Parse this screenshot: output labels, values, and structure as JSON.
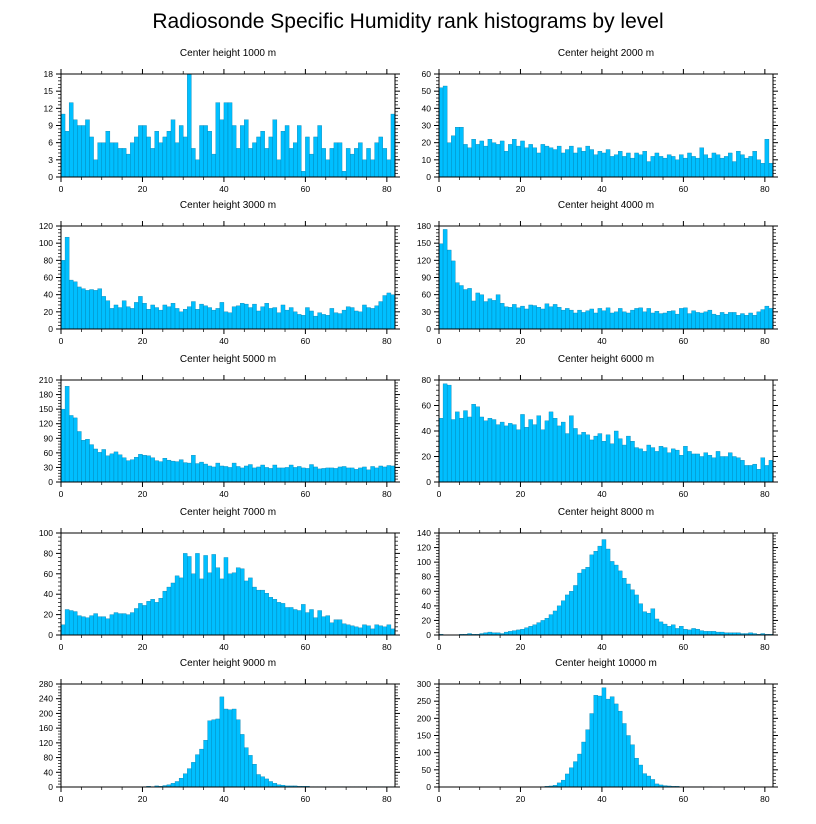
{
  "figure_title": "Radiosonde Specific Humidity rank histograms by level",
  "chart_data": [
    {
      "type": "bar",
      "title": "Center height 1000 m",
      "xlim": [
        0,
        82
      ],
      "ylim": [
        0,
        18
      ],
      "yticks": [
        0,
        3,
        6,
        9,
        12,
        15,
        18
      ],
      "xticks": [
        0,
        20,
        40,
        60,
        80
      ],
      "bar_color": "#00bfff",
      "values": [
        11,
        8,
        13,
        10,
        9,
        9,
        10,
        7,
        3,
        6,
        6,
        8,
        6,
        6,
        5,
        5,
        4,
        6,
        7,
        9,
        9,
        7,
        5,
        8,
        6,
        7,
        8,
        10,
        6,
        9,
        7,
        18,
        5,
        3,
        9,
        9,
        8,
        4,
        13,
        10,
        13,
        13,
        9,
        5,
        9,
        10,
        5,
        6,
        7,
        8,
        5,
        7,
        10,
        3,
        8,
        9,
        5,
        6,
        9,
        1,
        7,
        4,
        7,
        9,
        5,
        3,
        5,
        6,
        6,
        1,
        5,
        4,
        5,
        6,
        3,
        5,
        3,
        6,
        7,
        5,
        3,
        11
      ]
    },
    {
      "type": "bar",
      "title": "Center height 2000 m",
      "xlim": [
        0,
        82
      ],
      "ylim": [
        0,
        60
      ],
      "yticks": [
        0,
        10,
        20,
        30,
        40,
        50,
        60
      ],
      "xticks": [
        0,
        20,
        40,
        60,
        80
      ],
      "bar_color": "#00bfff",
      "values": [
        52,
        53,
        20,
        24,
        29,
        29,
        19,
        17,
        22,
        19,
        21,
        18,
        22,
        20,
        19,
        21,
        15,
        19,
        22,
        18,
        21,
        17,
        19,
        17,
        14,
        19,
        18,
        17,
        16,
        18,
        14,
        16,
        18,
        14,
        17,
        15,
        18,
        16,
        13,
        15,
        14,
        16,
        12,
        13,
        15,
        12,
        14,
        11,
        14,
        13,
        15,
        9,
        12,
        14,
        12,
        11,
        13,
        12,
        10,
        13,
        11,
        14,
        12,
        11,
        17,
        13,
        11,
        14,
        13,
        11,
        12,
        14,
        9,
        15,
        13,
        11,
        12,
        15,
        10,
        8,
        22,
        8
      ]
    },
    {
      "type": "bar",
      "title": "Center height 3000 m",
      "xlim": [
        0,
        82
      ],
      "ylim": [
        0,
        120
      ],
      "yticks": [
        0,
        20,
        40,
        60,
        80,
        100,
        120
      ],
      "xticks": [
        0,
        20,
        40,
        60,
        80
      ],
      "bar_color": "#00bfff",
      "values": [
        80,
        107,
        57,
        55,
        49,
        47,
        45,
        46,
        45,
        47,
        38,
        33,
        24,
        28,
        25,
        33,
        26,
        24,
        31,
        38,
        30,
        23,
        28,
        25,
        22,
        28,
        26,
        30,
        24,
        20,
        23,
        26,
        32,
        23,
        29,
        27,
        25,
        22,
        24,
        31,
        20,
        19,
        26,
        27,
        30,
        29,
        25,
        29,
        21,
        26,
        30,
        24,
        25,
        19,
        28,
        22,
        25,
        20,
        17,
        16,
        25,
        21,
        15,
        19,
        17,
        16,
        24,
        19,
        18,
        22,
        26,
        25,
        21,
        20,
        28,
        25,
        24,
        27,
        32,
        39,
        42,
        40
      ]
    },
    {
      "type": "bar",
      "title": "Center height 4000 m",
      "xlim": [
        0,
        82
      ],
      "ylim": [
        0,
        180
      ],
      "yticks": [
        0,
        30,
        60,
        90,
        120,
        150,
        180
      ],
      "xticks": [
        0,
        20,
        40,
        60,
        80
      ],
      "bar_color": "#00bfff",
      "values": [
        149,
        174,
        138,
        119,
        81,
        76,
        69,
        71,
        49,
        63,
        60,
        48,
        53,
        50,
        60,
        45,
        39,
        38,
        43,
        37,
        40,
        35,
        42,
        41,
        38,
        35,
        44,
        39,
        43,
        38,
        33,
        36,
        33,
        28,
        33,
        29,
        32,
        35,
        28,
        36,
        32,
        37,
        28,
        30,
        36,
        30,
        28,
        33,
        36,
        37,
        30,
        36,
        28,
        31,
        27,
        28,
        31,
        32,
        26,
        36,
        37,
        27,
        32,
        29,
        28,
        30,
        33,
        26,
        24,
        29,
        26,
        29,
        29,
        24,
        27,
        24,
        28,
        24,
        30,
        34,
        40,
        36
      ]
    },
    {
      "type": "bar",
      "title": "Center height 5000 m",
      "xlim": [
        0,
        82
      ],
      "ylim": [
        0,
        210
      ],
      "yticks": [
        0,
        30,
        60,
        90,
        120,
        150,
        180,
        210
      ],
      "xticks": [
        0,
        20,
        40,
        60,
        80
      ],
      "bar_color": "#00bfff",
      "values": [
        150,
        197,
        137,
        132,
        104,
        86,
        88,
        77,
        68,
        61,
        67,
        54,
        58,
        62,
        56,
        50,
        44,
        46,
        51,
        57,
        55,
        54,
        50,
        44,
        42,
        49,
        45,
        43,
        42,
        46,
        40,
        39,
        55,
        38,
        41,
        37,
        33,
        31,
        39,
        33,
        32,
        30,
        39,
        32,
        29,
        33,
        36,
        29,
        31,
        35,
        30,
        28,
        35,
        29,
        29,
        30,
        35,
        30,
        32,
        29,
        28,
        36,
        31,
        27,
        28,
        29,
        29,
        28,
        31,
        32,
        29,
        29,
        26,
        29,
        31,
        25,
        32,
        29,
        33,
        31,
        34,
        33
      ]
    },
    {
      "type": "bar",
      "title": "Center height 6000 m",
      "xlim": [
        0,
        82
      ],
      "ylim": [
        0,
        80
      ],
      "yticks": [
        0,
        20,
        40,
        60,
        80
      ],
      "xticks": [
        0,
        20,
        40,
        60,
        80
      ],
      "bar_color": "#00bfff",
      "values": [
        50,
        77,
        76,
        49,
        55,
        50,
        56,
        51,
        61,
        59,
        51,
        48,
        50,
        49,
        45,
        47,
        44,
        46,
        45,
        41,
        53,
        43,
        49,
        45,
        52,
        41,
        48,
        55,
        50,
        44,
        47,
        38,
        52,
        42,
        37,
        39,
        37,
        33,
        36,
        38,
        32,
        37,
        30,
        40,
        34,
        29,
        36,
        32,
        27,
        26,
        24,
        29,
        27,
        24,
        28,
        27,
        23,
        26,
        25,
        21,
        28,
        24,
        22,
        22,
        20,
        23,
        21,
        19,
        24,
        20,
        20,
        23,
        20,
        19,
        17,
        13,
        13,
        14,
        10,
        19,
        13,
        17
      ]
    },
    {
      "type": "bar",
      "title": "Center height 7000 m",
      "xlim": [
        0,
        82
      ],
      "ylim": [
        0,
        100
      ],
      "yticks": [
        0,
        20,
        40,
        60,
        80,
        100
      ],
      "xticks": [
        0,
        20,
        40,
        60,
        80
      ],
      "bar_color": "#00bfff",
      "values": [
        10,
        25,
        24,
        23,
        19,
        18,
        17,
        19,
        21,
        18,
        18,
        16,
        20,
        22,
        21,
        21,
        20,
        22,
        26,
        31,
        29,
        33,
        35,
        32,
        36,
        43,
        47,
        51,
        58,
        56,
        80,
        77,
        60,
        80,
        55,
        78,
        61,
        79,
        66,
        55,
        76,
        60,
        61,
        66,
        65,
        53,
        56,
        47,
        44,
        44,
        41,
        37,
        35,
        32,
        31,
        27,
        27,
        25,
        24,
        30,
        22,
        25,
        17,
        24,
        18,
        19,
        12,
        15,
        15,
        11,
        10,
        9,
        8,
        7,
        10,
        9,
        6,
        10,
        9,
        8,
        10,
        6
      ]
    },
    {
      "type": "bar",
      "title": "Center height 8000 m",
      "xlim": [
        0,
        82
      ],
      "ylim": [
        0,
        140
      ],
      "yticks": [
        0,
        20,
        40,
        60,
        80,
        100,
        120,
        140
      ],
      "xticks": [
        0,
        20,
        40,
        60,
        80
      ],
      "bar_color": "#00bfff",
      "values": [
        1,
        0,
        0,
        0,
        0,
        1,
        1,
        2,
        1,
        1,
        2,
        3,
        4,
        3,
        3,
        2,
        4,
        5,
        6,
        7,
        8,
        10,
        12,
        14,
        17,
        20,
        23,
        28,
        33,
        40,
        47,
        55,
        60,
        68,
        85,
        90,
        93,
        110,
        115,
        122,
        131,
        118,
        101,
        96,
        88,
        78,
        70,
        62,
        55,
        43,
        32,
        30,
        36,
        22,
        18,
        15,
        12,
        14,
        9,
        12,
        8,
        7,
        9,
        8,
        6,
        5,
        5,
        5,
        4,
        4,
        3,
        3,
        3,
        3,
        2,
        2,
        3,
        2,
        1,
        2,
        1,
        1
      ]
    },
    {
      "type": "bar",
      "title": "Center height 9000 m",
      "xlim": [
        0,
        82
      ],
      "ylim": [
        0,
        280
      ],
      "yticks": [
        0,
        40,
        80,
        120,
        160,
        200,
        240,
        280
      ],
      "xticks": [
        0,
        20,
        40,
        60,
        80
      ],
      "bar_color": "#00bfff",
      "values": [
        0,
        0,
        0,
        0,
        0,
        0,
        0,
        0,
        0,
        0,
        0,
        0,
        0,
        0,
        0,
        0,
        0,
        0,
        0,
        0,
        1,
        2,
        1,
        3,
        2,
        4,
        6,
        10,
        15,
        24,
        36,
        50,
        67,
        88,
        103,
        127,
        180,
        183,
        185,
        245,
        212,
        210,
        212,
        183,
        143,
        107,
        86,
        62,
        34,
        28,
        22,
        15,
        10,
        6,
        5,
        3,
        3,
        3,
        2,
        2,
        2,
        1,
        1,
        1,
        1,
        1,
        1,
        1,
        1,
        1,
        1,
        1,
        1,
        1,
        1,
        1,
        1,
        1,
        1,
        1,
        1,
        1
      ]
    },
    {
      "type": "bar",
      "title": "Center height 10000 m",
      "xlim": [
        0,
        82
      ],
      "ylim": [
        0,
        300
      ],
      "yticks": [
        0,
        50,
        100,
        150,
        200,
        250,
        300
      ],
      "xticks": [
        0,
        20,
        40,
        60,
        80
      ],
      "bar_color": "#00bfff",
      "values": [
        0,
        0,
        0,
        0,
        0,
        0,
        0,
        0,
        0,
        0,
        0,
        0,
        0,
        0,
        0,
        0,
        0,
        0,
        0,
        0,
        0,
        0,
        0,
        0,
        0,
        1,
        2,
        3,
        5,
        12,
        20,
        38,
        56,
        74,
        96,
        131,
        167,
        214,
        267,
        265,
        289,
        256,
        263,
        242,
        221,
        185,
        150,
        123,
        84,
        64,
        39,
        32,
        22,
        9,
        6,
        4,
        3,
        2,
        2,
        1,
        1,
        1,
        1,
        1,
        1,
        1,
        1,
        0,
        0,
        0,
        0,
        0,
        0,
        0,
        0,
        0,
        0,
        0,
        0,
        0,
        0,
        0
      ]
    }
  ]
}
